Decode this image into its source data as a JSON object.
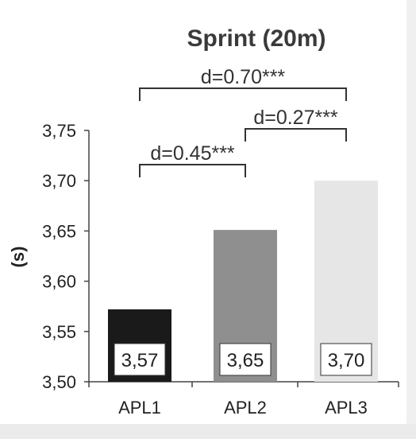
{
  "chart_data": {
    "type": "bar",
    "title": "Sprint (20m)",
    "ylabel": "(s)",
    "xlabel": "",
    "categories": [
      "APL1",
      "APL2",
      "APL3"
    ],
    "values": [
      3.572,
      3.651,
      3.7
    ],
    "data_labels": [
      "3,57",
      "3,65",
      "3,70"
    ],
    "bar_colors": [
      "#1a1a1a",
      "#8f8f8f",
      "#e6e6e6"
    ],
    "ylim": [
      3.5,
      3.75
    ],
    "yticks": [
      3.5,
      3.55,
      3.6,
      3.65,
      3.7,
      3.75
    ],
    "ytick_labels": [
      "3,50",
      "3,55",
      "3,60",
      "3,65",
      "3,70",
      "3,75"
    ],
    "grid": false,
    "legend": "none",
    "annotations": [
      {
        "from": "APL1",
        "to": "APL2",
        "label": "d=0.45***"
      },
      {
        "from": "APL2",
        "to": "APL3",
        "label": "d=0.27***"
      },
      {
        "from": "APL1",
        "to": "APL3",
        "label": "d=0.70***"
      }
    ]
  }
}
